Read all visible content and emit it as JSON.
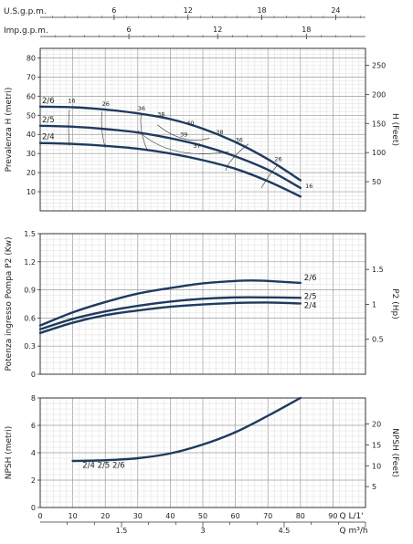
{
  "chart_data": [
    {
      "type": "line",
      "title": "",
      "xlabel": "Q L/1'",
      "ylabel": "Prevalenza H (metri)",
      "ylabel_right": "H (Feet)",
      "xlim": [
        0,
        100
      ],
      "ylim": [
        0,
        85
      ],
      "yticks": [
        "10",
        "20",
        "30",
        "40",
        "50",
        "60",
        "70",
        "80"
      ],
      "yticks_right": [
        "50",
        "100",
        "150",
        "200",
        "250"
      ],
      "yticks_right_values": [
        50,
        100,
        150,
        200,
        250
      ],
      "series": [
        {
          "name": "2/6",
          "color": "#1f3a5f",
          "x": [
            0,
            10,
            20,
            30,
            40,
            50,
            60,
            70,
            80
          ],
          "y": [
            54.5,
            54.2,
            53,
            51,
            48,
            43,
            36,
            27,
            16
          ]
        },
        {
          "name": "2/5",
          "color": "#1f3a5f",
          "x": [
            0,
            10,
            20,
            30,
            40,
            50,
            60,
            70,
            80
          ],
          "y": [
            44.5,
            44,
            42.8,
            41,
            38,
            34,
            28.5,
            21.5,
            12
          ]
        },
        {
          "name": "2/4",
          "color": "#1f3a5f",
          "x": [
            0,
            10,
            20,
            30,
            40,
            50,
            60,
            70,
            80
          ],
          "y": [
            35.5,
            35,
            34,
            32.5,
            30,
            26.5,
            22,
            15.5,
            7.5
          ]
        }
      ],
      "efficiency_labels": [
        "16",
        "26",
        "36",
        "38",
        "40",
        "39",
        "38",
        "37",
        "36",
        "26",
        "16"
      ],
      "flow_scales": [
        {
          "label": "U.S.g.p.m.",
          "ticks": [
            "6",
            "12",
            "18",
            "24"
          ],
          "values": [
            6,
            12,
            18,
            24
          ],
          "factor": 0.264172
        },
        {
          "label": "Imp.g.p.m.",
          "ticks": [
            "6",
            "12",
            "18"
          ],
          "values": [
            6,
            12,
            18
          ],
          "factor": 0.219969
        }
      ]
    },
    {
      "type": "line",
      "title": "",
      "ylabel": "Potenza ingresso Pompa P2 (Kw)",
      "ylabel_right": "P2 (Hp)",
      "xlim": [
        0,
        100
      ],
      "ylim": [
        0,
        1.5
      ],
      "yticks": [
        "0",
        "0.3",
        "0.6",
        "0.9",
        "1.2",
        "1.5"
      ],
      "yticks_right": [
        "0.5",
        "1",
        "1.5"
      ],
      "yticks_right_values": [
        0.5,
        1,
        1.5
      ],
      "series": [
        {
          "name": "2/6",
          "x": [
            0,
            10,
            20,
            30,
            40,
            50,
            60,
            65,
            70,
            80
          ],
          "y": [
            0.52,
            0.66,
            0.77,
            0.86,
            0.92,
            0.97,
            0.995,
            1.0,
            0.995,
            0.975
          ]
        },
        {
          "name": "2/5",
          "x": [
            0,
            10,
            20,
            30,
            40,
            50,
            60,
            70,
            80
          ],
          "y": [
            0.48,
            0.59,
            0.67,
            0.73,
            0.775,
            0.805,
            0.82,
            0.82,
            0.815
          ]
        },
        {
          "name": "2/4",
          "x": [
            0,
            10,
            20,
            30,
            40,
            50,
            60,
            70,
            80
          ],
          "y": [
            0.44,
            0.55,
            0.63,
            0.68,
            0.72,
            0.745,
            0.76,
            0.765,
            0.755
          ]
        }
      ]
    },
    {
      "type": "line",
      "title": "",
      "ylabel": "NPSH (metri)",
      "ylabel_right": "NPSH (Feet)",
      "xlabel": "Q L/1'",
      "xlabel2": "Q m³/h",
      "xlim": [
        0,
        100
      ],
      "ylim": [
        0,
        8
      ],
      "xticks": [
        "0",
        "10",
        "20",
        "30",
        "40",
        "50",
        "60",
        "70",
        "80",
        "90"
      ],
      "xticks_m3h": [
        "1.5",
        "3",
        "4.5"
      ],
      "xticks_m3h_values": [
        1.5,
        3,
        4.5
      ],
      "yticks": [
        "0",
        "2",
        "4",
        "6",
        "8"
      ],
      "yticks_right": [
        "5",
        "10",
        "15",
        "20"
      ],
      "yticks_right_values": [
        5,
        10,
        15,
        20
      ],
      "series_label": "2/4  2/5  2/6",
      "series": [
        {
          "name": "2/4 2/5 2/6",
          "x": [
            10,
            20,
            30,
            40,
            50,
            60,
            70,
            80
          ],
          "y": [
            3.4,
            3.45,
            3.6,
            3.95,
            4.6,
            5.5,
            6.7,
            8.0
          ]
        }
      ]
    }
  ]
}
